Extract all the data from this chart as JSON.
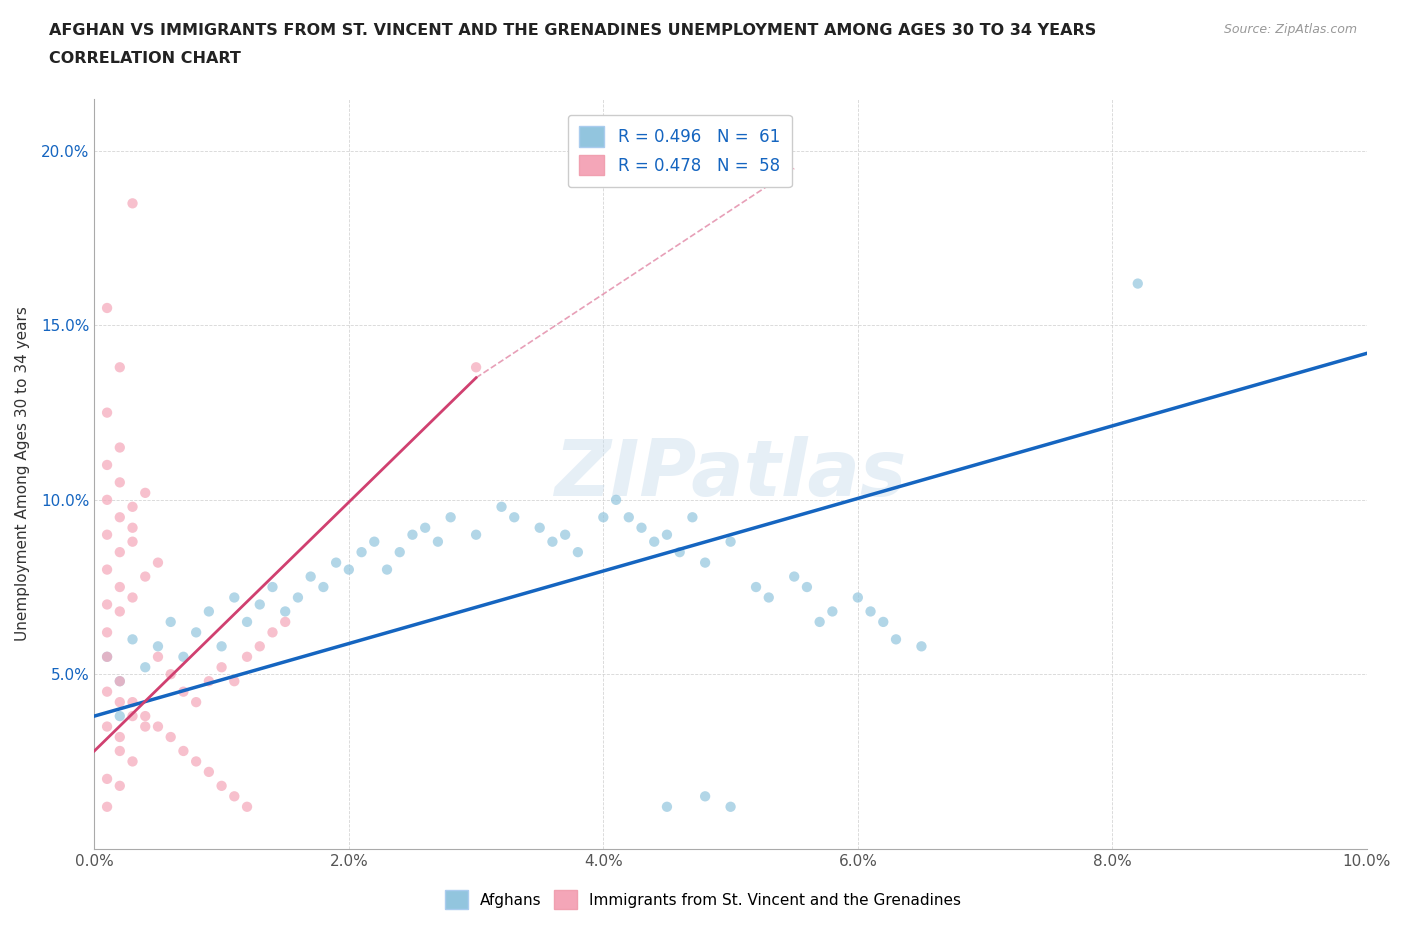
{
  "title_line1": "AFGHAN VS IMMIGRANTS FROM ST. VINCENT AND THE GRENADINES UNEMPLOYMENT AMONG AGES 30 TO 34 YEARS",
  "title_line2": "CORRELATION CHART",
  "source_text": "Source: ZipAtlas.com",
  "ylabel": "Unemployment Among Ages 30 to 34 years",
  "xlim": [
    0.0,
    0.1
  ],
  "ylim": [
    0.0,
    0.215
  ],
  "xtick_labels": [
    "0.0%",
    "2.0%",
    "4.0%",
    "6.0%",
    "8.0%",
    "10.0%"
  ],
  "xtick_values": [
    0.0,
    0.02,
    0.04,
    0.06,
    0.08,
    0.1
  ],
  "ytick_labels": [
    "5.0%",
    "10.0%",
    "15.0%",
    "20.0%"
  ],
  "ytick_values": [
    0.05,
    0.1,
    0.15,
    0.2
  ],
  "legend_r1": "R = 0.496",
  "legend_n1": "N = 61",
  "legend_r2": "R = 0.478",
  "legend_n2": "N = 58",
  "blue_color": "#92c5de",
  "pink_color": "#f4a6b8",
  "blue_line_color": "#1565C0",
  "pink_line_color": "#d04070",
  "watermark": "ZIPatlas",
  "blue_scatter": [
    [
      0.001,
      0.055
    ],
    [
      0.002,
      0.048
    ],
    [
      0.003,
      0.06
    ],
    [
      0.004,
      0.052
    ],
    [
      0.005,
      0.058
    ],
    [
      0.006,
      0.065
    ],
    [
      0.007,
      0.055
    ],
    [
      0.008,
      0.062
    ],
    [
      0.009,
      0.068
    ],
    [
      0.01,
      0.058
    ],
    [
      0.011,
      0.072
    ],
    [
      0.012,
      0.065
    ],
    [
      0.013,
      0.07
    ],
    [
      0.014,
      0.075
    ],
    [
      0.015,
      0.068
    ],
    [
      0.016,
      0.072
    ],
    [
      0.017,
      0.078
    ],
    [
      0.018,
      0.075
    ],
    [
      0.019,
      0.082
    ],
    [
      0.02,
      0.08
    ],
    [
      0.021,
      0.085
    ],
    [
      0.022,
      0.088
    ],
    [
      0.023,
      0.08
    ],
    [
      0.024,
      0.085
    ],
    [
      0.025,
      0.09
    ],
    [
      0.026,
      0.092
    ],
    [
      0.027,
      0.088
    ],
    [
      0.028,
      0.095
    ],
    [
      0.03,
      0.09
    ],
    [
      0.032,
      0.098
    ],
    [
      0.033,
      0.095
    ],
    [
      0.035,
      0.092
    ],
    [
      0.036,
      0.088
    ],
    [
      0.037,
      0.09
    ],
    [
      0.038,
      0.085
    ],
    [
      0.04,
      0.095
    ],
    [
      0.041,
      0.1
    ],
    [
      0.042,
      0.095
    ],
    [
      0.043,
      0.092
    ],
    [
      0.044,
      0.088
    ],
    [
      0.045,
      0.09
    ],
    [
      0.046,
      0.085
    ],
    [
      0.047,
      0.095
    ],
    [
      0.048,
      0.082
    ],
    [
      0.05,
      0.088
    ],
    [
      0.052,
      0.075
    ],
    [
      0.053,
      0.072
    ],
    [
      0.055,
      0.078
    ],
    [
      0.056,
      0.075
    ],
    [
      0.057,
      0.065
    ],
    [
      0.058,
      0.068
    ],
    [
      0.06,
      0.072
    ],
    [
      0.061,
      0.068
    ],
    [
      0.062,
      0.065
    ],
    [
      0.063,
      0.06
    ],
    [
      0.065,
      0.058
    ],
    [
      0.045,
      0.012
    ],
    [
      0.048,
      0.015
    ],
    [
      0.05,
      0.012
    ],
    [
      0.082,
      0.162
    ],
    [
      0.002,
      0.038
    ]
  ],
  "pink_scatter": [
    [
      0.001,
      0.055
    ],
    [
      0.002,
      0.048
    ],
    [
      0.003,
      0.042
    ],
    [
      0.004,
      0.038
    ],
    [
      0.005,
      0.035
    ],
    [
      0.006,
      0.032
    ],
    [
      0.007,
      0.028
    ],
    [
      0.008,
      0.025
    ],
    [
      0.009,
      0.022
    ],
    [
      0.01,
      0.018
    ],
    [
      0.011,
      0.015
    ],
    [
      0.012,
      0.012
    ],
    [
      0.001,
      0.045
    ],
    [
      0.002,
      0.042
    ],
    [
      0.003,
      0.038
    ],
    [
      0.004,
      0.035
    ],
    [
      0.005,
      0.055
    ],
    [
      0.006,
      0.05
    ],
    [
      0.007,
      0.045
    ],
    [
      0.008,
      0.042
    ],
    [
      0.009,
      0.048
    ],
    [
      0.01,
      0.052
    ],
    [
      0.011,
      0.048
    ],
    [
      0.012,
      0.055
    ],
    [
      0.013,
      0.058
    ],
    [
      0.014,
      0.062
    ],
    [
      0.015,
      0.065
    ],
    [
      0.001,
      0.07
    ],
    [
      0.002,
      0.075
    ],
    [
      0.003,
      0.072
    ],
    [
      0.001,
      0.08
    ],
    [
      0.002,
      0.085
    ],
    [
      0.003,
      0.088
    ],
    [
      0.001,
      0.09
    ],
    [
      0.002,
      0.095
    ],
    [
      0.003,
      0.092
    ],
    [
      0.001,
      0.1
    ],
    [
      0.002,
      0.105
    ],
    [
      0.001,
      0.11
    ],
    [
      0.002,
      0.115
    ],
    [
      0.001,
      0.125
    ],
    [
      0.002,
      0.138
    ],
    [
      0.001,
      0.155
    ],
    [
      0.003,
      0.185
    ],
    [
      0.001,
      0.062
    ],
    [
      0.002,
      0.068
    ],
    [
      0.004,
      0.078
    ],
    [
      0.005,
      0.082
    ],
    [
      0.003,
      0.098
    ],
    [
      0.004,
      0.102
    ],
    [
      0.002,
      0.028
    ],
    [
      0.003,
      0.025
    ],
    [
      0.001,
      0.035
    ],
    [
      0.002,
      0.032
    ],
    [
      0.001,
      0.02
    ],
    [
      0.002,
      0.018
    ],
    [
      0.001,
      0.012
    ],
    [
      0.03,
      0.138
    ]
  ],
  "blue_trendline": [
    [
      0.0,
      0.038
    ],
    [
      0.1,
      0.142
    ]
  ],
  "pink_trendline": [
    [
      0.0,
      0.028
    ],
    [
      0.03,
      0.135
    ]
  ]
}
